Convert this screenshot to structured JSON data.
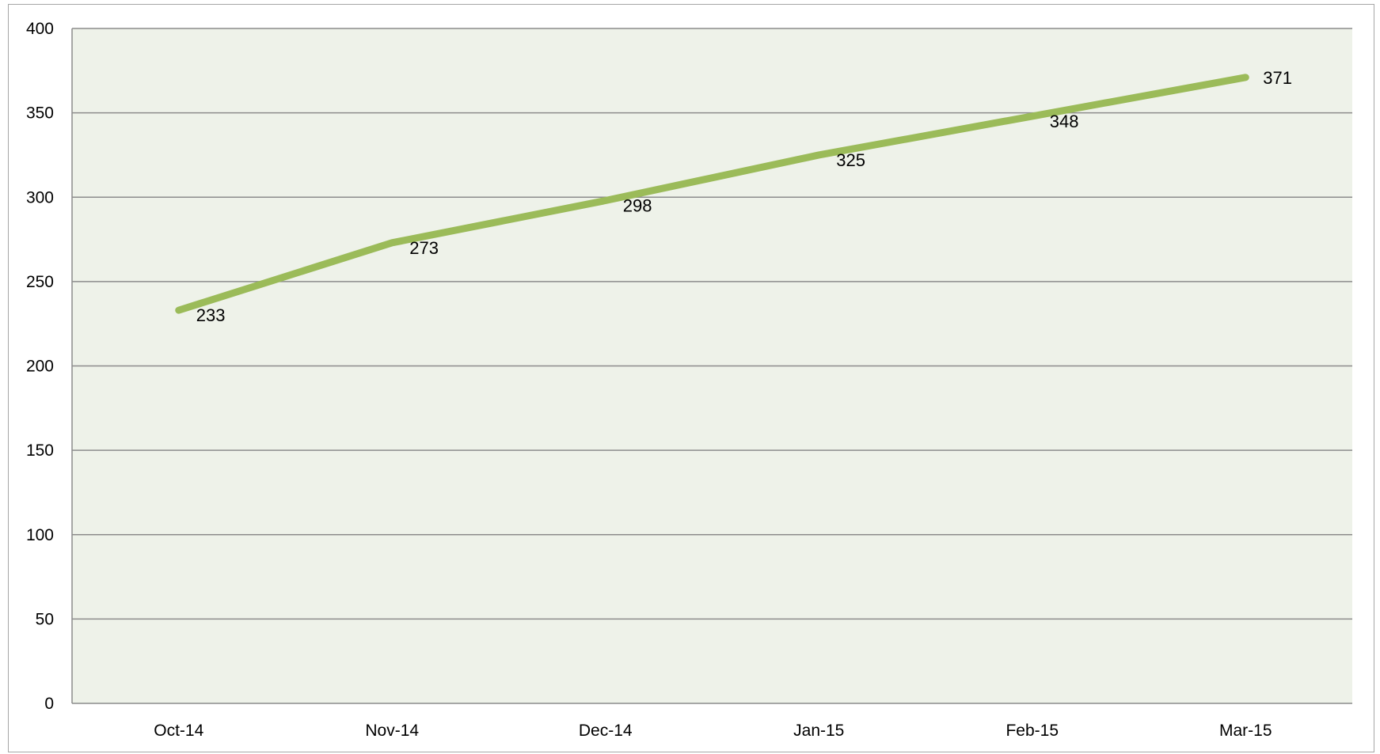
{
  "chart_data": {
    "type": "line",
    "categories": [
      "Oct-14",
      "Nov-14",
      "Dec-14",
      "Jan-15",
      "Feb-15",
      "Mar-15"
    ],
    "series": [
      {
        "values": [
          233,
          273,
          298,
          325,
          348,
          371
        ],
        "color": "#9bbb59"
      }
    ],
    "data_labels": [
      "233",
      "273",
      "298",
      "325",
      "348",
      "371"
    ],
    "title": "",
    "xlabel": "",
    "ylabel": "",
    "ylim": [
      0,
      400
    ],
    "yticks": [
      0,
      50,
      100,
      150,
      200,
      250,
      300,
      350,
      400
    ],
    "ytick_labels": [
      "0",
      "50",
      "100",
      "150",
      "200",
      "250",
      "300",
      "350",
      "400"
    ],
    "grid": true,
    "legend": "none",
    "plot_background": "#eef2e9",
    "gridline_color": "#8c8c8c"
  }
}
